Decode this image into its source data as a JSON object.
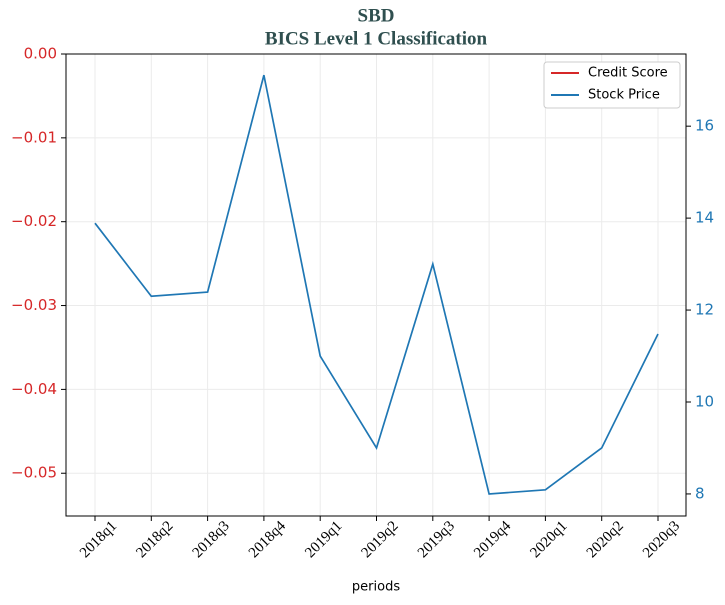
{
  "chart_data": {
    "type": "line",
    "title": "SBD",
    "subtitle": "BICS Level 1 Classification",
    "x_label": "periods",
    "categories": [
      "2018q1",
      "2018q2",
      "2018q3",
      "2018q4",
      "2019q1",
      "2019q2",
      "2019q3",
      "2019q4",
      "2020q1",
      "2020q2",
      "2020q3"
    ],
    "series": [
      {
        "name": "Credit Score",
        "color": "#d62728",
        "values": [
          null,
          null,
          null,
          null,
          null,
          null,
          null,
          null,
          null,
          null,
          null
        ]
      },
      {
        "name": "Stock Price",
        "color": "#1f77b4",
        "axis": "y2",
        "values": [
          13.89,
          12.3,
          12.39,
          17.11,
          11.0,
          9.0,
          13.0,
          8.0,
          8.09,
          9.0,
          11.48
        ]
      }
    ],
    "ylim": [
      -0.0551,
      0
    ],
    "yticks": [
      {
        "value": 0,
        "label": "0.00"
      },
      {
        "value": -0.01,
        "label": "−0.01"
      },
      {
        "value": -0.02,
        "label": "−0.02"
      },
      {
        "value": -0.03,
        "label": "−0.03"
      },
      {
        "value": -0.04,
        "label": "−0.04"
      },
      {
        "value": -0.05,
        "label": "−0.05"
      }
    ],
    "y2lim": [
      7.52,
      17.57
    ],
    "y2ticks": [
      8,
      10,
      12,
      14,
      16
    ],
    "grid": true,
    "legend": "upper right"
  }
}
